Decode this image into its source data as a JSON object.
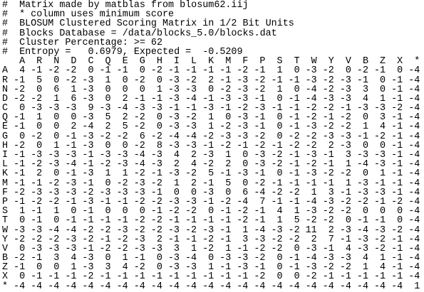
{
  "comments": [
    "#  Matrix made by matblas from blosum62.iij",
    "#  * column uses minimum score",
    "#  BLOSUM Clustered Scoring Matrix in 1/2 Bit Units",
    "#  Blocks Database = /data/blocks_5.0/blocks.dat",
    "#  Cluster Percentage: >= 62",
    "#  Entropy =   0.6979, Expected =  -0.5209"
  ],
  "matrix": {
    "columns": [
      "A",
      "R",
      "N",
      "D",
      "C",
      "Q",
      "E",
      "G",
      "H",
      "I",
      "L",
      "K",
      "M",
      "F",
      "P",
      "S",
      "T",
      "W",
      "Y",
      "V",
      "B",
      "Z",
      "X",
      "*"
    ],
    "rows": [
      {
        "label": "A",
        "values": [
          4,
          -1,
          -2,
          -2,
          0,
          -1,
          -1,
          0,
          -2,
          -1,
          -1,
          -1,
          -1,
          -2,
          -1,
          1,
          0,
          -3,
          -2,
          0,
          -2,
          -1,
          0,
          -4
        ]
      },
      {
        "label": "R",
        "values": [
          -1,
          5,
          0,
          -2,
          -3,
          1,
          0,
          -2,
          0,
          -3,
          -2,
          2,
          -1,
          -3,
          -2,
          -1,
          -1,
          -3,
          -2,
          -3,
          -1,
          0,
          -1,
          -4
        ]
      },
      {
        "label": "N",
        "values": [
          -2,
          0,
          6,
          1,
          -3,
          0,
          0,
          0,
          1,
          -3,
          -3,
          0,
          -2,
          -3,
          -2,
          1,
          0,
          -4,
          -2,
          -3,
          3,
          0,
          -1,
          -4
        ]
      },
      {
        "label": "D",
        "values": [
          -2,
          -2,
          1,
          6,
          -3,
          0,
          2,
          -1,
          -1,
          -3,
          -4,
          -1,
          -3,
          -3,
          -1,
          0,
          -1,
          -4,
          -3,
          -3,
          4,
          1,
          -1,
          -4
        ]
      },
      {
        "label": "C",
        "values": [
          0,
          -3,
          -3,
          -3,
          9,
          -3,
          -4,
          -3,
          -3,
          -1,
          -1,
          -3,
          -1,
          -2,
          -3,
          -1,
          -1,
          -2,
          -2,
          -1,
          -3,
          -3,
          -2,
          -4
        ]
      },
      {
        "label": "Q",
        "values": [
          -1,
          1,
          0,
          0,
          -3,
          5,
          2,
          -2,
          0,
          -3,
          -2,
          1,
          0,
          -3,
          -1,
          0,
          -1,
          -2,
          -1,
          -2,
          0,
          3,
          -1,
          -4
        ]
      },
      {
        "label": "E",
        "values": [
          -1,
          0,
          0,
          2,
          -4,
          2,
          5,
          -2,
          0,
          -3,
          -3,
          1,
          -2,
          -3,
          -1,
          0,
          -1,
          -3,
          -2,
          -2,
          1,
          4,
          -1,
          -4
        ]
      },
      {
        "label": "G",
        "values": [
          0,
          -2,
          0,
          -1,
          -3,
          -2,
          -2,
          6,
          -2,
          -4,
          -4,
          -2,
          -3,
          -3,
          -2,
          0,
          -2,
          -2,
          -3,
          -3,
          -1,
          -2,
          -1,
          -4
        ]
      },
      {
        "label": "H",
        "values": [
          -2,
          0,
          1,
          -1,
          -3,
          0,
          0,
          -2,
          8,
          -3,
          -3,
          -1,
          -2,
          -1,
          -2,
          -1,
          -2,
          -2,
          2,
          -3,
          0,
          0,
          -1,
          -4
        ]
      },
      {
        "label": "I",
        "values": [
          -1,
          -3,
          -3,
          -3,
          -1,
          -3,
          -3,
          -4,
          -3,
          4,
          2,
          -3,
          1,
          0,
          -3,
          -2,
          -1,
          -3,
          -1,
          3,
          -3,
          -3,
          -1,
          -4
        ]
      },
      {
        "label": "L",
        "values": [
          -1,
          -2,
          -3,
          -4,
          -1,
          -2,
          -3,
          -4,
          -3,
          2,
          4,
          -2,
          2,
          0,
          -3,
          -2,
          -1,
          -2,
          -1,
          1,
          -4,
          -3,
          -1,
          -4
        ]
      },
      {
        "label": "K",
        "values": [
          -1,
          2,
          0,
          -1,
          -3,
          1,
          1,
          -2,
          -1,
          -3,
          -2,
          5,
          -1,
          -3,
          -1,
          0,
          -1,
          -3,
          -2,
          -2,
          0,
          1,
          -1,
          -4
        ]
      },
      {
        "label": "M",
        "values": [
          -1,
          -1,
          -2,
          -3,
          -1,
          0,
          -2,
          -3,
          -2,
          1,
          2,
          -1,
          5,
          0,
          -2,
          -1,
          -1,
          -1,
          -1,
          1,
          -3,
          -1,
          -1,
          -4
        ]
      },
      {
        "label": "F",
        "values": [
          -2,
          -3,
          -3,
          -3,
          -2,
          -3,
          -3,
          -3,
          -1,
          0,
          0,
          -3,
          0,
          6,
          -4,
          -2,
          -2,
          1,
          3,
          -1,
          -3,
          -3,
          -1,
          -4
        ]
      },
      {
        "label": "P",
        "values": [
          -1,
          -2,
          -2,
          -1,
          -3,
          -1,
          -1,
          -2,
          -2,
          -3,
          -3,
          -1,
          -2,
          -4,
          7,
          -1,
          -1,
          -4,
          -3,
          -2,
          -2,
          -1,
          -2,
          -4
        ]
      },
      {
        "label": "S",
        "values": [
          1,
          -1,
          1,
          0,
          -1,
          0,
          0,
          0,
          -1,
          -2,
          -2,
          0,
          -1,
          -2,
          -1,
          4,
          1,
          -3,
          -2,
          -2,
          0,
          0,
          0,
          -4
        ]
      },
      {
        "label": "T",
        "values": [
          0,
          -1,
          0,
          -1,
          -1,
          -1,
          -1,
          -2,
          -2,
          -1,
          -1,
          -1,
          -1,
          -2,
          -1,
          1,
          5,
          -2,
          -2,
          0,
          -1,
          -1,
          0,
          -4
        ]
      },
      {
        "label": "W",
        "values": [
          -3,
          -3,
          -4,
          -4,
          -2,
          -2,
          -3,
          -2,
          -2,
          -3,
          -2,
          -3,
          -1,
          1,
          -4,
          -3,
          -2,
          11,
          2,
          -3,
          -4,
          -3,
          -2,
          -4
        ]
      },
      {
        "label": "Y",
        "values": [
          -2,
          -2,
          -2,
          -3,
          -2,
          -1,
          -2,
          -3,
          2,
          -1,
          -1,
          -2,
          -1,
          3,
          -3,
          -2,
          -2,
          2,
          7,
          -1,
          -3,
          -2,
          -1,
          -4
        ]
      },
      {
        "label": "V",
        "values": [
          0,
          -3,
          -3,
          -3,
          -1,
          -2,
          -2,
          -3,
          -3,
          3,
          1,
          -2,
          1,
          -1,
          -2,
          -2,
          0,
          -3,
          -1,
          4,
          -3,
          -2,
          -1,
          -4
        ]
      },
      {
        "label": "B",
        "values": [
          -2,
          -1,
          3,
          4,
          -3,
          0,
          1,
          -1,
          0,
          -3,
          -4,
          0,
          -3,
          -3,
          -2,
          0,
          -1,
          -4,
          -3,
          -3,
          4,
          1,
          -1,
          -4
        ]
      },
      {
        "label": "Z",
        "values": [
          -1,
          0,
          0,
          1,
          -3,
          3,
          4,
          -2,
          0,
          -3,
          -3,
          1,
          -1,
          -3,
          -1,
          0,
          -1,
          -3,
          -2,
          -2,
          1,
          4,
          -1,
          -4
        ]
      },
      {
        "label": "X",
        "values": [
          0,
          -1,
          -1,
          -1,
          -2,
          -1,
          -1,
          -1,
          -1,
          -1,
          -1,
          -1,
          -1,
          -1,
          -2,
          0,
          0,
          -2,
          -1,
          -1,
          -1,
          -1,
          -1,
          -4
        ]
      },
      {
        "label": "*",
        "values": [
          -4,
          -4,
          -4,
          -4,
          -4,
          -4,
          -4,
          -4,
          -4,
          -4,
          -4,
          -4,
          -4,
          -4,
          -4,
          -4,
          -4,
          -4,
          -4,
          -4,
          -4,
          -4,
          -4,
          1
        ]
      }
    ]
  }
}
